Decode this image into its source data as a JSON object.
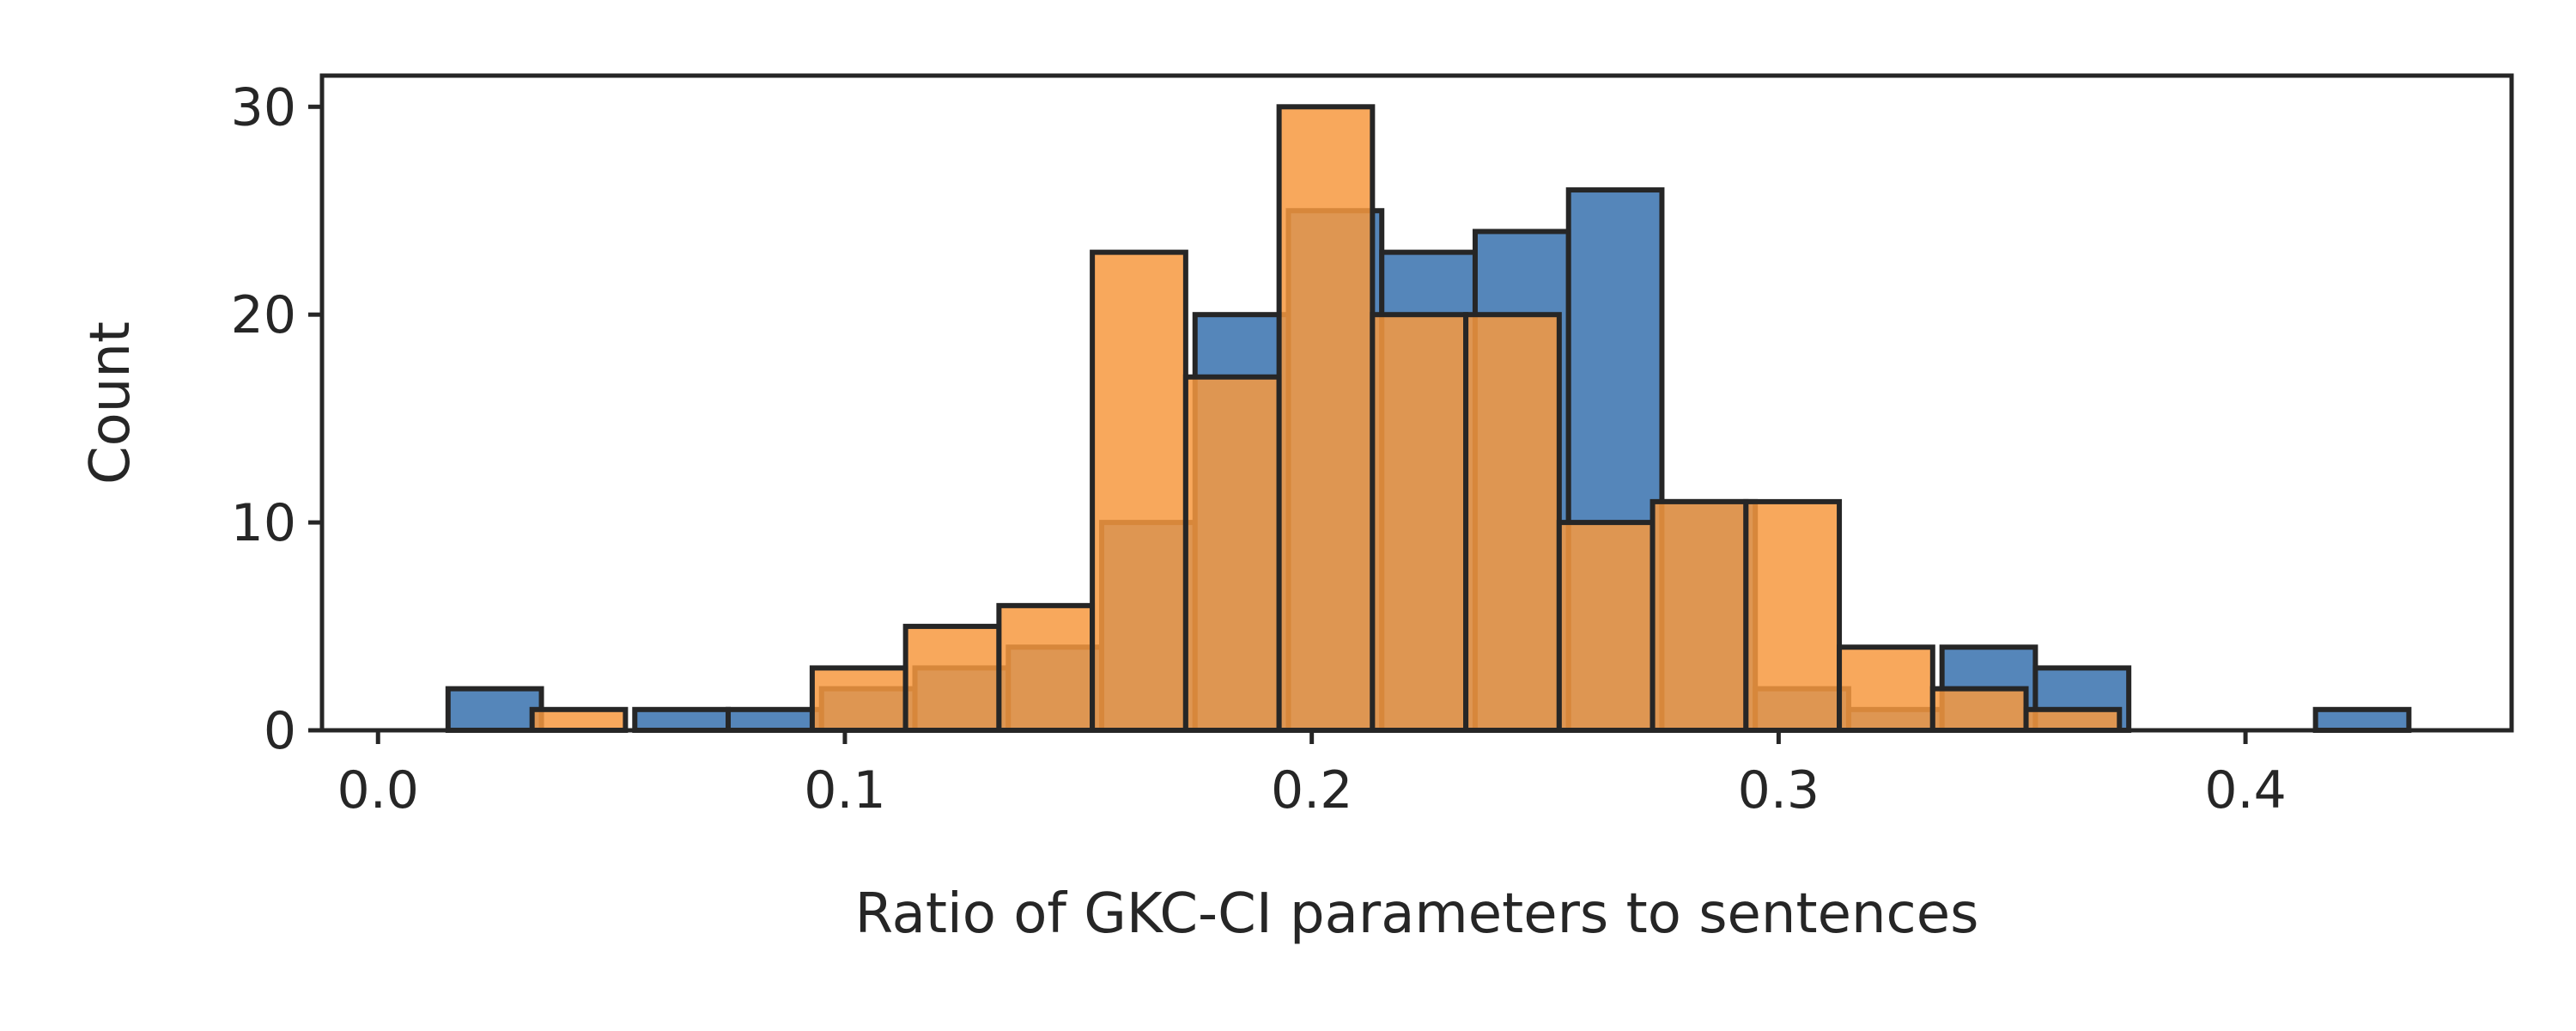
{
  "chart_data": {
    "type": "histogram",
    "title": "",
    "xlabel": "Ratio of GKC-CI parameters to sentences",
    "ylabel": "Count",
    "xlim": [
      -0.012,
      0.457
    ],
    "ylim": [
      0,
      31.5
    ],
    "xticks": [
      0.0,
      0.1,
      0.2,
      0.3,
      0.4
    ],
    "xtick_labels": [
      "0.0",
      "0.1",
      "0.2",
      "0.3",
      "0.4"
    ],
    "yticks": [
      0,
      10,
      20,
      30
    ],
    "ytick_labels": [
      "0",
      "10",
      "20",
      "30"
    ],
    "legend": "none",
    "colors": {
      "blue": "#4c7fb6",
      "orange": "#f7993f",
      "edge": "#262626",
      "axes": "#262626"
    },
    "series": [
      {
        "name": "blue",
        "color": "#4c7fb6",
        "bin_edges": [
          0.015,
          0.035,
          0.055,
          0.075,
          0.095,
          0.115,
          0.135,
          0.155,
          0.175,
          0.195,
          0.215,
          0.235,
          0.255,
          0.275,
          0.295,
          0.315,
          0.335,
          0.355,
          0.375,
          0.395,
          0.415,
          0.435
        ],
        "counts": [
          2,
          0,
          1,
          1,
          2,
          3,
          4,
          10,
          20,
          25,
          23,
          24,
          26,
          11,
          2,
          1,
          4,
          3,
          0,
          0,
          1
        ]
      },
      {
        "name": "orange",
        "color": "#f7993f",
        "bin_edges": [
          0.033,
          0.053,
          0.073,
          0.093,
          0.113,
          0.133,
          0.153,
          0.173,
          0.193,
          0.213,
          0.233,
          0.253,
          0.273,
          0.293,
          0.313,
          0.333,
          0.353,
          0.373
        ],
        "counts": [
          1,
          0,
          0,
          3,
          5,
          6,
          23,
          17,
          30,
          20,
          20,
          10,
          11,
          11,
          4,
          2,
          1
        ]
      }
    ]
  }
}
